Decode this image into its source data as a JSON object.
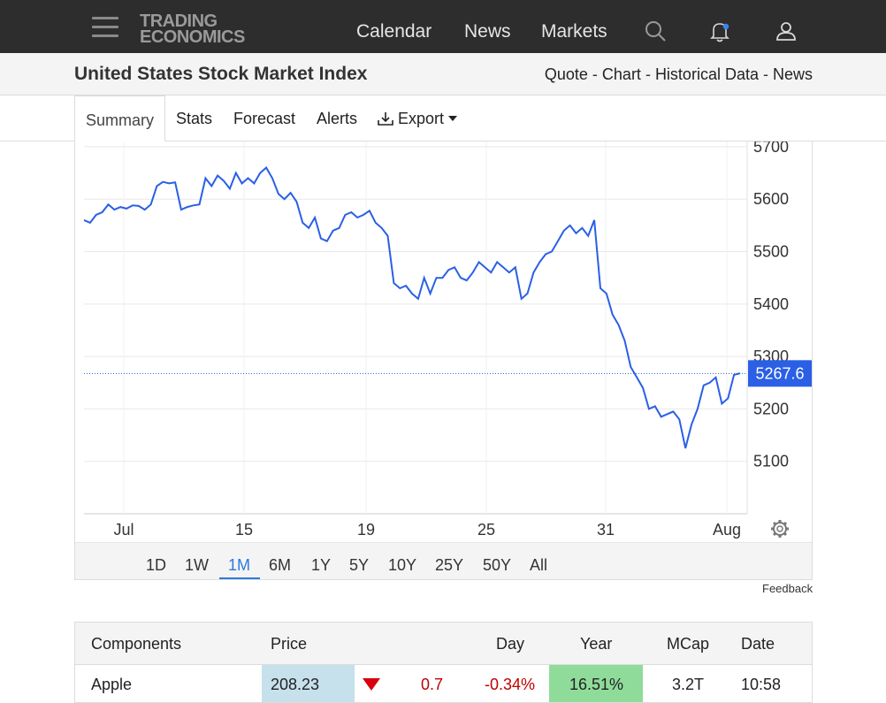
{
  "topbar": {
    "logo_line1": "TRADING",
    "logo_line2": "ECONOMICS",
    "nav": [
      "Calendar",
      "News",
      "Markets"
    ],
    "icons": [
      "menu-icon",
      "search-icon",
      "bell-icon",
      "user-icon"
    ],
    "notification_dot_color": "#3b82f6"
  },
  "subheader": {
    "title": "United States Stock Market Index",
    "links": [
      "Quote",
      "Chart",
      "Historical Data",
      "News"
    ],
    "separator": " - "
  },
  "tabs": {
    "active": "Summary",
    "items": [
      "Stats",
      "Forecast",
      "Alerts",
      "Export"
    ]
  },
  "chart_data": {
    "type": "line",
    "x_ticks": [
      "Jul",
      "15",
      "19",
      "25",
      "31",
      "Aug"
    ],
    "y_ticks": [
      5100,
      5200,
      5300,
      5400,
      5500,
      5600,
      5700
    ],
    "ylim": [
      5000,
      5710
    ],
    "grid": true,
    "line_color": "#2a5fe6",
    "last_value": "5267.6",
    "last_value_color": "#2a5fe6",
    "series": [
      {
        "values": [
          5560,
          5555,
          5570,
          5575,
          5590,
          5580,
          5585,
          5582,
          5588,
          5587,
          5580,
          5590,
          5625,
          5633,
          5630,
          5632,
          5580,
          5585,
          5588,
          5590,
          5640,
          5625,
          5645,
          5635,
          5620,
          5650,
          5630,
          5640,
          5630,
          5650,
          5660,
          5640,
          5610,
          5600,
          5612,
          5595,
          5555,
          5545,
          5565,
          5525,
          5520,
          5540,
          5545,
          5570,
          5575,
          5565,
          5570,
          5578,
          5555,
          5545,
          5530,
          5440,
          5430,
          5435,
          5420,
          5410,
          5450,
          5420,
          5450,
          5450,
          5465,
          5470,
          5450,
          5445,
          5460,
          5480,
          5470,
          5460,
          5480,
          5470,
          5460,
          5470,
          5410,
          5420,
          5460,
          5480,
          5495,
          5500,
          5520,
          5540,
          5550,
          5535,
          5545,
          5530,
          5560,
          5430,
          5420,
          5380,
          5360,
          5330,
          5280,
          5260,
          5240,
          5200,
          5205,
          5185,
          5190,
          5195,
          5180,
          5125,
          5170,
          5200,
          5245,
          5250,
          5260,
          5210,
          5220,
          5265,
          5268
        ]
      }
    ]
  },
  "ranges": {
    "items": [
      "1D",
      "1W",
      "1M",
      "6M",
      "1Y",
      "5Y",
      "10Y",
      "25Y",
      "50Y",
      "All"
    ],
    "active": "1M"
  },
  "feedback": "Feedback",
  "table": {
    "headers": [
      "Components",
      "Price",
      "Day",
      "Year",
      "MCap",
      "Date"
    ],
    "rows": [
      {
        "name": "Apple",
        "price": "208.23",
        "change": "0.7",
        "day": "-0.34%",
        "year": "16.51%",
        "mcap": "3.2T",
        "date": "10:58"
      }
    ],
    "colors": {
      "price_bg": "#c6e0ec",
      "year_bg": "#8fdc9a",
      "negative": "#c00000",
      "down_arrow": "#d8000c"
    }
  }
}
